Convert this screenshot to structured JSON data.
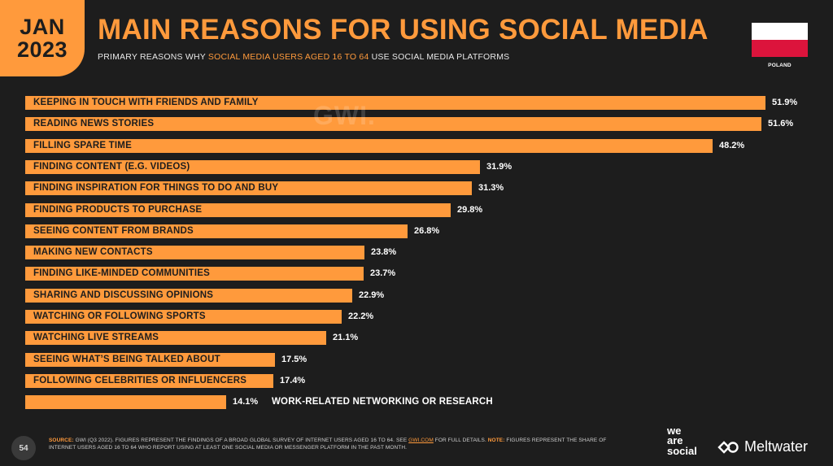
{
  "header": {
    "badge_month": "JAN",
    "badge_year": "2023",
    "title": "MAIN REASONS FOR USING SOCIAL MEDIA",
    "subtitle_prefix": "PRIMARY REASONS WHY ",
    "subtitle_highlight": "SOCIAL MEDIA USERS AGED 16 TO 64",
    "subtitle_suffix": " USE SOCIAL MEDIA PLATFORMS",
    "country": "POLAND"
  },
  "watermark": "GWI.",
  "colors": {
    "accent": "#ff9a3c",
    "background": "#1d1d1d",
    "flag_white": "#ffffff",
    "flag_red": "#dc143c"
  },
  "chart_data": {
    "type": "bar",
    "orientation": "horizontal",
    "categories": [
      "KEEPING IN TOUCH WITH FRIENDS AND FAMILY",
      "READING NEWS STORIES",
      "FILLING SPARE TIME",
      "FINDING CONTENT (E.G. VIDEOS)",
      "FINDING INSPIRATION FOR THINGS TO DO AND BUY",
      "FINDING PRODUCTS TO PURCHASE",
      "SEEING CONTENT FROM BRANDS",
      "MAKING NEW CONTACTS",
      "FINDING LIKE-MINDED COMMUNITIES",
      "SHARING AND DISCUSSING OPINIONS",
      "WATCHING OR FOLLOWING SPORTS",
      "WATCHING LIVE STREAMS",
      "SEEING WHAT’S BEING TALKED ABOUT",
      "FOLLOWING CELEBRITIES OR INFLUENCERS",
      "WORK-RELATED NETWORKING OR RESEARCH"
    ],
    "values": [
      51.9,
      51.6,
      48.2,
      31.9,
      31.3,
      29.8,
      26.8,
      23.8,
      23.7,
      22.9,
      22.2,
      21.1,
      17.5,
      17.4,
      14.1
    ],
    "value_labels": [
      "51.9%",
      "51.6%",
      "48.2%",
      "31.9%",
      "31.3%",
      "29.8%",
      "26.8%",
      "23.8%",
      "23.7%",
      "22.9%",
      "22.2%",
      "21.1%",
      "17.5%",
      "17.4%",
      "14.1%"
    ],
    "unit": "%",
    "grid": false,
    "legend": "none"
  },
  "footer": {
    "page_number": "54",
    "source_tag": "SOURCE:",
    "source_text": " GWI (Q3 2022). FIGURES REPRESENT THE FINDINGS OF A BROAD GLOBAL SURVEY OF INTERNET USERS AGED 16 TO 64. SEE ",
    "source_link": "GWI.COM",
    "source_text_2": " FOR FULL DETAILS. ",
    "note_tag": "NOTE:",
    "note_text": " FIGURES REPRESENT THE SHARE OF INTERNET USERS AGED 16 TO 64 WHO REPORT USING AT LEAST ONE SOCIAL MEDIA OR MESSENGER PLATFORM IN THE PAST MONTH.",
    "brand_ws_1": "we",
    "brand_ws_2": "are",
    "brand_ws_3": "social",
    "brand_mw": "Meltwater"
  }
}
